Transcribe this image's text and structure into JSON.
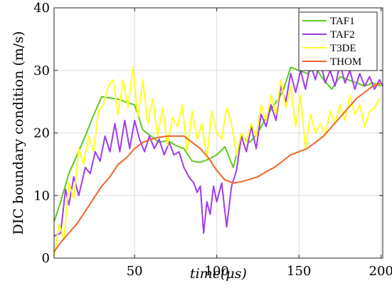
{
  "chart_data": {
    "type": "line",
    "title": "",
    "xlabel": "time(μs)",
    "ylabel": "DIC boundary condition (m/s)",
    "xlim": [
      1,
      201
    ],
    "ylim": [
      0,
      40
    ],
    "x_ticks": [
      50,
      100,
      150,
      200
    ],
    "y_ticks": [
      0,
      10,
      20,
      30,
      40
    ],
    "grid": true,
    "legend_position": "top-right",
    "series": [
      {
        "name": "TAF1",
        "color": "#5ccc1f",
        "x": [
          1,
          5,
          10,
          15,
          20,
          25,
          30,
          35,
          40,
          45,
          50,
          55,
          60,
          65,
          70,
          75,
          80,
          85,
          90,
          95,
          100,
          105,
          110,
          115,
          120,
          125,
          130,
          135,
          140,
          145,
          150,
          155,
          160,
          165,
          170,
          175,
          180,
          185,
          190,
          195,
          200
        ],
        "y": [
          5.8,
          9.0,
          13.5,
          16.5,
          19.5,
          22.8,
          25.8,
          25.6,
          25.4,
          24.9,
          24.5,
          20.5,
          19.5,
          18.5,
          18.8,
          18.0,
          17.5,
          15.5,
          15.3,
          15.8,
          16.5,
          17.8,
          14.5,
          19.5,
          18.5,
          20.0,
          22.5,
          24.5,
          26.5,
          30.5,
          30.0,
          29.5,
          30.5,
          28.5,
          27.0,
          29.0,
          28.5,
          28.0,
          27.5,
          28.0,
          27.5
        ]
      },
      {
        "name": "TAF2",
        "color": "#a03ce8",
        "x": [
          1,
          5,
          8,
          10,
          13,
          16,
          20,
          23,
          26,
          29,
          32,
          35,
          38,
          41,
          44,
          47,
          50,
          53,
          56,
          59,
          62,
          65,
          68,
          71,
          74,
          77,
          80,
          83,
          86,
          88,
          90,
          92,
          94,
          96,
          98,
          100,
          103,
          106,
          109,
          112,
          115,
          118,
          121,
          124,
          127,
          130,
          133,
          136,
          139,
          142,
          145,
          148,
          151,
          154,
          157,
          160,
          163,
          166,
          169,
          172,
          175,
          178,
          181,
          184,
          187,
          190,
          193,
          196,
          199,
          201
        ],
        "y": [
          3.5,
          4.0,
          11.0,
          8.5,
          13.0,
          10.0,
          14.5,
          13.5,
          17.0,
          15.5,
          19.5,
          17.0,
          21.5,
          17.0,
          22.0,
          17.5,
          22.0,
          19.0,
          17.0,
          19.5,
          17.5,
          19.0,
          16.5,
          18.5,
          16.5,
          17.0,
          14.5,
          13.0,
          12.0,
          10.5,
          11.5,
          4.0,
          9.0,
          7.0,
          11.5,
          9.0,
          12.0,
          5.0,
          11.5,
          14.0,
          19.5,
          17.0,
          21.0,
          17.5,
          23.0,
          21.0,
          24.5,
          22.0,
          27.5,
          25.0,
          29.5,
          26.5,
          30.0,
          27.0,
          31.0,
          28.5,
          31.5,
          28.0,
          30.0,
          27.5,
          31.0,
          28.0,
          30.0,
          27.0,
          29.5,
          27.5,
          29.0,
          27.0,
          28.5,
          27.5
        ]
      },
      {
        "name": "T3DE",
        "color": "#ffff24",
        "x": [
          1,
          4,
          7,
          10,
          13,
          16,
          19,
          22,
          25,
          28,
          31,
          34,
          37,
          40,
          43,
          46,
          49,
          52,
          55,
          58,
          61,
          64,
          67,
          70,
          73,
          76,
          79,
          82,
          85,
          88,
          91,
          94,
          97,
          100,
          103,
          106,
          109,
          112,
          115,
          118,
          121,
          124,
          127,
          130,
          133,
          136,
          139,
          142,
          145,
          148,
          151,
          154,
          157,
          160,
          163,
          166,
          169,
          172,
          175,
          178,
          181,
          184,
          187,
          190,
          193,
          196,
          199
        ],
        "y": [
          0.2,
          5.5,
          3.0,
          12.0,
          9.5,
          17.5,
          15.0,
          19.5,
          17.0,
          23.5,
          24.5,
          27.5,
          28.5,
          23.0,
          28.5,
          24.0,
          30.5,
          22.5,
          28.5,
          21.5,
          25.5,
          19.5,
          24.0,
          18.0,
          22.5,
          21.0,
          24.5,
          17.0,
          23.5,
          19.0,
          21.5,
          16.0,
          23.5,
          20.0,
          19.0,
          24.0,
          21.5,
          16.5,
          20.0,
          18.5,
          21.5,
          19.5,
          24.5,
          22.0,
          26.0,
          23.0,
          28.5,
          24.0,
          27.5,
          21.0,
          26.0,
          17.5,
          23.0,
          20.0,
          21.5,
          19.5,
          23.5,
          21.5,
          24.5,
          22.0,
          26.0,
          23.0,
          24.5,
          21.0,
          23.5,
          24.0,
          25.5
        ]
      },
      {
        "name": "THOM",
        "color": "#f06428",
        "x": [
          1,
          5,
          10,
          15,
          20,
          25,
          30,
          35,
          40,
          45,
          50,
          55,
          60,
          65,
          70,
          75,
          80,
          85,
          90,
          95,
          100,
          105,
          110,
          115,
          120,
          125,
          130,
          135,
          140,
          145,
          150,
          155,
          160,
          165,
          170,
          175,
          180,
          185,
          190,
          195,
          200
        ],
        "y": [
          1.0,
          2.5,
          4.0,
          5.5,
          7.5,
          9.5,
          11.5,
          13.0,
          15.0,
          16.0,
          17.5,
          18.5,
          19.0,
          19.3,
          19.5,
          19.5,
          19.5,
          18.5,
          17.5,
          16.0,
          14.0,
          12.5,
          12.0,
          12.2,
          12.6,
          13.0,
          13.8,
          14.5,
          15.5,
          16.5,
          17.0,
          17.5,
          18.5,
          19.5,
          21.0,
          22.5,
          24.0,
          25.5,
          26.5,
          27.5,
          28.0
        ]
      }
    ]
  }
}
